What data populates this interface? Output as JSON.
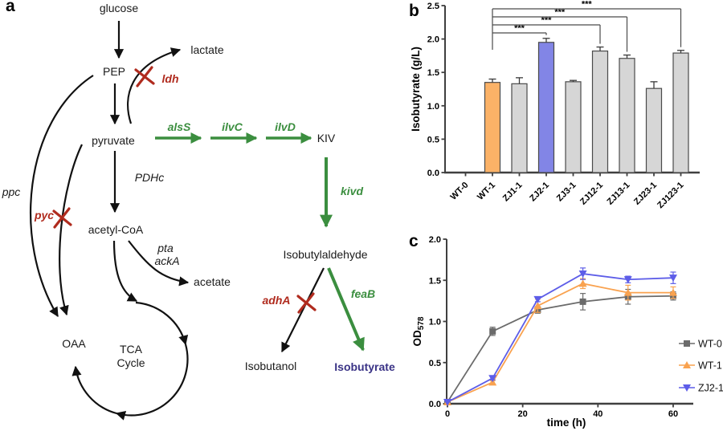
{
  "background": "#ffffff",
  "figure": {
    "panel_a_label": "a",
    "panel_b_label": "b",
    "panel_c_label": "c"
  },
  "colors": {
    "green": "#3b8e3f",
    "red": "#b02b1e",
    "purple": "#3a3386",
    "black": "#1a1a1a",
    "axis": "#3f3f3f",
    "orange_bar": "#fbb267",
    "blue_bar": "#8285e6",
    "gray_bar": "#d6d6d6",
    "wt0_line": "#6b6b6b",
    "wt1_line": "#f9a24f",
    "zj21_line": "#5d5de8"
  },
  "pathway": {
    "metabolites": {
      "glucose": "glucose",
      "pep": "PEP",
      "pyruvate": "pyruvate",
      "lactate": "lactate",
      "kiv": "KIV",
      "acetyl_coa": "acetyl-CoA",
      "acetate": "acetate",
      "oaa": "OAA",
      "tca": "TCA",
      "cycle": "Cycle",
      "isobutylaldehyde": "Isobutylaldehyde",
      "isobutanol": "Isobutanol",
      "isobutyrate": "Isobutyrate"
    },
    "genes": {
      "ldh": "ldh",
      "alsS": "alsS",
      "ilvC": "ilvC",
      "ilvD": "ilvD",
      "kivd": "kivd",
      "pdhc": "PDHc",
      "pta": "pta",
      "ackA": "ackA",
      "ppc": "ppc",
      "pyc": "pyc",
      "adhA": "adhA",
      "feaB": "feaB"
    }
  },
  "chart_data": [
    {
      "type": "bar",
      "panel": "b",
      "ylabel": "Isobutyrate (g/L)",
      "ylim": [
        0,
        2.5
      ],
      "ytick_vals": [
        0,
        0.5,
        1.0,
        1.5,
        2.0,
        2.5
      ],
      "ytick_labels": [
        "0.0",
        "0.5",
        "1.0",
        "1.5",
        "2.0",
        "2.5"
      ],
      "categories": [
        "WT-0",
        "WT-1",
        "ZJ1-1",
        "ZJ2-1",
        "ZJ3-1",
        "ZJ12-1",
        "ZJ13-1",
        "ZJ23-1",
        "ZJ123-1"
      ],
      "values": [
        0,
        1.35,
        1.33,
        1.95,
        1.36,
        1.82,
        1.71,
        1.26,
        1.79
      ],
      "errors": [
        0,
        0.05,
        0.09,
        0.06,
        0.02,
        0.06,
        0.05,
        0.1,
        0.04
      ],
      "bar_fills": [
        "#d6d6d6",
        "#fbb267",
        "#d6d6d6",
        "#8285e6",
        "#d6d6d6",
        "#d6d6d6",
        "#d6d6d6",
        "#d6d6d6",
        "#d6d6d6"
      ],
      "grid": false,
      "significance": [
        {
          "from": "WT-1",
          "to": "ZJ2-1",
          "label": "***"
        },
        {
          "from": "WT-1",
          "to": "ZJ12-1",
          "label": "***"
        },
        {
          "from": "WT-1",
          "to": "ZJ13-1",
          "label": "***"
        },
        {
          "from": "WT-1",
          "to": "ZJ123-1",
          "label": "***"
        }
      ]
    },
    {
      "type": "line",
      "panel": "c",
      "xlabel": "time (h)",
      "ylabel": "OD",
      "ylabel_sub": "578",
      "xlim": [
        0,
        65
      ],
      "ylim": [
        0,
        2.0
      ],
      "xtick_vals": [
        0,
        20,
        40,
        60
      ],
      "xtick_labels": [
        "0",
        "20",
        "40",
        "60"
      ],
      "ytick_vals": [
        0,
        0.5,
        1.0,
        1.5,
        2.0
      ],
      "ytick_labels": [
        "0.0",
        "0.5",
        "1.0",
        "1.5",
        "2.0"
      ],
      "x": [
        0,
        12,
        24,
        36,
        48,
        60
      ],
      "series": [
        {
          "name": "WT-0",
          "marker": "square",
          "color": "#6b6b6b",
          "values": [
            0.02,
            0.88,
            1.14,
            1.24,
            1.3,
            1.31
          ],
          "errors": [
            0,
            0.05,
            0.04,
            0.1,
            0.09,
            0.05
          ]
        },
        {
          "name": "WT-1",
          "marker": "triangle-up",
          "color": "#f9a24f",
          "values": [
            0.02,
            0.26,
            1.19,
            1.46,
            1.35,
            1.35
          ],
          "errors": [
            0,
            0.02,
            0.08,
            0.06,
            0.09,
            0.07
          ]
        },
        {
          "name": "ZJ2-1",
          "marker": "triangle-down",
          "color": "#5d5de8",
          "values": [
            0.02,
            0.31,
            1.27,
            1.58,
            1.51,
            1.53
          ],
          "errors": [
            0,
            0.02,
            0.03,
            0.07,
            0.04,
            0.07
          ]
        }
      ],
      "legend_position": "right",
      "grid": false
    }
  ]
}
